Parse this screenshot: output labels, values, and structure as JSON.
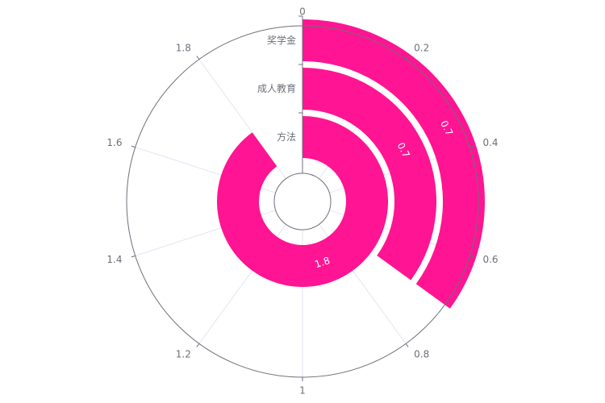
{
  "chart_data": {
    "type": "bar",
    "subtype": "polar-radial-bar",
    "title": "",
    "categories": [
      "方法",
      "成人教育",
      "奖学金"
    ],
    "values": [
      1.8,
      0.7,
      0.7
    ],
    "data_labels": [
      "1.8",
      "0.7",
      "0.7"
    ],
    "angle_axis": {
      "min": 0,
      "max": 2,
      "tick_labels": [
        "0",
        "0.2",
        "0.4",
        "0.6",
        "0.8",
        "1",
        "1.2",
        "1.4",
        "1.6",
        "1.8"
      ]
    },
    "grid": true,
    "legend": "none",
    "colors": {
      "bar": "#ff1493",
      "axis": "#6e7079",
      "grid": "#e0e6f1",
      "label_text": "#ffffff"
    }
  }
}
